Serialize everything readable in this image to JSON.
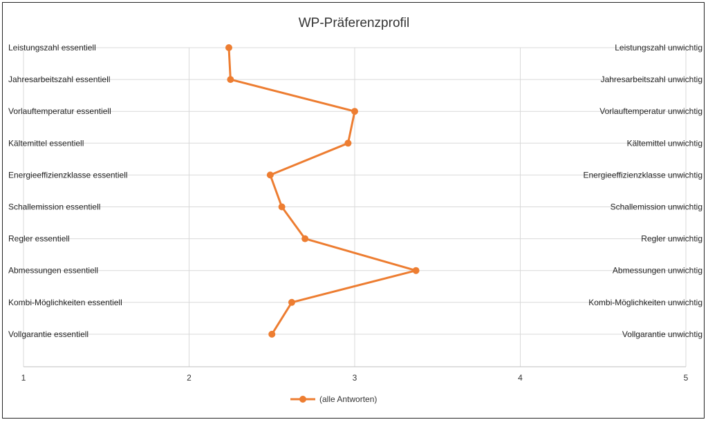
{
  "chart_data": {
    "type": "line",
    "title": "WP-Präferenzprofil",
    "orientation": "horizontal-profile",
    "left_labels": [
      "Leistungszahl essentiell",
      "Jahresarbeitszahl essentiell",
      "Vorlauftemperatur essentiell",
      "Kältemittel essentiell",
      "Energieeffizienzklasse essentiell",
      "Schallemission essentiell",
      "Regler essentiell",
      "Abmessungen essentiell",
      "Kombi-Möglichkeiten essentiell",
      "Vollgarantie essentiell"
    ],
    "right_labels": [
      "Leistungszahl unwichtig",
      "Jahresarbeitszahl unwichtig",
      "Vorlauftemperatur unwichtig",
      "Kältemittel unwichtig",
      "Energieeffizienzklasse unwichtig",
      "Schallemission unwichtig",
      "Regler unwichtig",
      "Abmessungen unwichtig",
      "Kombi-Möglichkeiten unwichtig",
      "Vollgarantie unwichtig"
    ],
    "series": [
      {
        "name": "(alle Antworten)",
        "color": "#ED7D31",
        "values": [
          2.24,
          2.25,
          3.0,
          2.96,
          2.49,
          2.56,
          2.7,
          3.37,
          2.62,
          2.5
        ]
      }
    ],
    "xlim": [
      1,
      5
    ],
    "xticks": [
      "1",
      "2",
      "3",
      "4",
      "5"
    ],
    "grid": true,
    "legend_position": "bottom",
    "gridline_color": "#D9D9D9"
  }
}
